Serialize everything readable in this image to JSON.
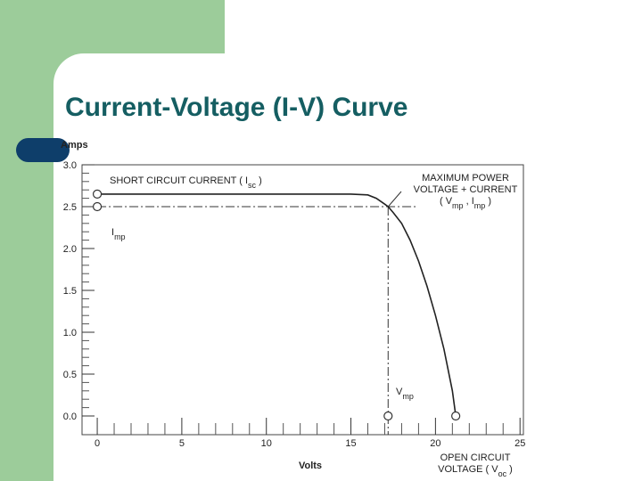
{
  "slide_title": "Current-Voltage (I-V) Curve",
  "chart_data": {
    "type": "line",
    "ylabel": "Amps",
    "xlabel": "Volts",
    "x": [
      0,
      5,
      10,
      15,
      16,
      16.5,
      17,
      17.2,
      17.5,
      18,
      18.5,
      19,
      19.5,
      20,
      20.5,
      21,
      21.2
    ],
    "series": [
      {
        "color": "#222222",
        "values": [
          2.65,
          2.65,
          2.65,
          2.65,
          2.64,
          2.6,
          2.53,
          2.5,
          2.43,
          2.3,
          2.1,
          1.85,
          1.55,
          1.2,
          0.8,
          0.3,
          0
        ]
      }
    ],
    "xlim": [
      -0.9,
      25.2
    ],
    "ylim": [
      0,
      3.0
    ],
    "xticks": [
      0,
      5,
      10,
      15,
      20,
      25
    ],
    "yticks": [
      {
        "value": 0,
        "label": "0.0"
      },
      0.5,
      {
        "value": 1,
        "label": "1.0"
      },
      1.5,
      {
        "value": 2,
        "label": "2.0"
      },
      2.5,
      {
        "value": 3,
        "label": "3.0"
      }
    ],
    "mpp": {
      "x": 17.2,
      "y": 2.5
    },
    "markers": [
      {
        "x": 0,
        "y": 2.65
      },
      {
        "x": 0,
        "y": 2.5
      },
      {
        "x": 17.2,
        "y": 0
      },
      {
        "x": 21.2,
        "y": 0
      }
    ],
    "annotations": [
      {
        "lines": [
          [
            {
              "t": "SHORT CIRCUIT CURRENT ( I"
            },
            {
              "t": "sc",
              "sub": true
            },
            {
              "t": " )"
            }
          ]
        ]
      },
      {
        "lines": [
          [
            {
              "t": "I"
            },
            {
              "t": "mp",
              "sub": true
            }
          ]
        ]
      },
      {
        "lines": [
          [
            {
              "t": "MAXIMUM POWER"
            }
          ],
          [
            {
              "t": "VOLTAGE + CURRENT"
            }
          ],
          [
            {
              "t": "( V"
            },
            {
              "t": "mp",
              "sub": true
            },
            {
              "t": " , I"
            },
            {
              "t": "mp",
              "sub": true
            },
            {
              "t": " )"
            }
          ]
        ]
      },
      {
        "lines": [
          [
            {
              "t": "V"
            },
            {
              "t": "mp",
              "sub": true
            }
          ]
        ]
      },
      {
        "lines": [
          [
            {
              "t": "OPEN CIRCUIT"
            }
          ],
          [
            {
              "t": "VOLTAGE ( V"
            },
            {
              "t": "oc",
              "sub": true
            },
            {
              "t": " )"
            }
          ]
        ]
      }
    ]
  }
}
